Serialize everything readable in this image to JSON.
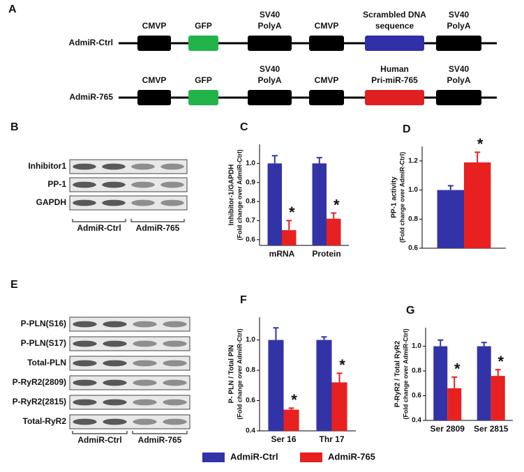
{
  "construct_diagram": {
    "panel": "A",
    "rows": [
      {
        "label": "AdmiR-Ctrl",
        "elements": [
          {
            "label": [
              "CMVP"
            ],
            "color": "#000000"
          },
          {
            "label": [
              "GFP"
            ],
            "color": "#22b34a"
          },
          {
            "label": [
              "SV40",
              "PolyA"
            ],
            "color": "#000000"
          },
          {
            "label": [
              "CMVP"
            ],
            "color": "#000000"
          },
          {
            "label": [
              "Scrambled DNA",
              "sequence"
            ],
            "color": "#3030a8"
          },
          {
            "label": [
              "SV40",
              "PolyA"
            ],
            "color": "#000000"
          }
        ]
      },
      {
        "label": "AdmiR-765",
        "elements": [
          {
            "label": [
              "CMVP"
            ],
            "color": "#000000"
          },
          {
            "label": [
              "GFP"
            ],
            "color": "#22b34a"
          },
          {
            "label": [
              "SV40",
              "PolyA"
            ],
            "color": "#000000"
          },
          {
            "label": [
              "CMVP"
            ],
            "color": "#000000"
          },
          {
            "label": [
              "Human",
              "Pri-miR-765"
            ],
            "color": "#e02020"
          },
          {
            "label": [
              "SV40",
              "PolyA"
            ],
            "color": "#000000"
          }
        ]
      }
    ]
  },
  "blot_b": {
    "panel": "B",
    "rows": [
      "Inhibitor1",
      "PP-1",
      "GAPDH"
    ],
    "groups": [
      "AdmiR-Ctrl",
      "AdmiR-765"
    ]
  },
  "blot_e": {
    "panel": "E",
    "rows": [
      "P-PLN(S16)",
      "P-PLN(S17)",
      "Total-PLN",
      "P-RyR2(2809)",
      "P-RyR2(2815)",
      "Total-RyR2"
    ],
    "groups": [
      "AdmiR-Ctrl",
      "AdmiR-765"
    ]
  },
  "chart_data": [
    {
      "type": "bar",
      "panel": "C",
      "ylabel": [
        "Inhibitor-1/GAPDH",
        "(Fold change over AdmiR-Ctrl)"
      ],
      "categories": [
        "mRNA",
        "Protein"
      ],
      "series": [
        {
          "name": "AdmiR-Ctrl",
          "color": "#3333a8",
          "values": [
            1.0,
            1.0
          ],
          "errors": [
            0.04,
            0.03
          ]
        },
        {
          "name": "AdmiR-765",
          "color": "#e82020",
          "values": [
            0.65,
            0.71
          ],
          "errors": [
            0.05,
            0.03
          ],
          "marks": [
            "*",
            "*"
          ]
        }
      ],
      "ylim": [
        0.57,
        1.1
      ],
      "yticks": [
        {
          "value": 0.6,
          "label": "0.6"
        },
        {
          "value": 0.7,
          "label": "0.7"
        },
        {
          "value": 0.8,
          "label": "0.8"
        },
        {
          "value": 0.9,
          "label": "0.9"
        },
        {
          "value": 1.0,
          "label": "1.0"
        }
      ]
    },
    {
      "type": "bar",
      "panel": "D",
      "ylabel": [
        "PP-1 activity",
        "(Fold change over AdmiR-Ctrl)"
      ],
      "categories": [
        null
      ],
      "series": [
        {
          "name": "AdmiR-Ctrl",
          "color": "#3333a8",
          "values": [
            1.0
          ],
          "errors": [
            0.03
          ]
        },
        {
          "name": "AdmiR-765",
          "color": "#e82020",
          "values": [
            1.19
          ],
          "errors": [
            0.07
          ],
          "marks": [
            "*"
          ]
        }
      ],
      "ylim": [
        0.6,
        1.3
      ],
      "yticks": [
        {
          "value": 0.6,
          "label": "0.6"
        },
        {
          "value": 0.8,
          "label": "0.8"
        },
        {
          "value": 1.0,
          "label": "1.0"
        },
        {
          "value": 1.2,
          "label": "1.2"
        }
      ]
    },
    {
      "type": "bar",
      "panel": "F",
      "ylabel": [
        "P- PLN / Total PlN",
        "(Fold change over AdmiR-Ctrl)"
      ],
      "categories": [
        "Ser 16",
        "Thr 17"
      ],
      "series": [
        {
          "name": "AdmiR-Ctrl",
          "color": "#3333a8",
          "values": [
            1.0,
            1.0
          ],
          "errors": [
            0.08,
            0.02
          ]
        },
        {
          "name": "AdmiR-765",
          "color": "#e82020",
          "values": [
            0.54,
            0.72
          ],
          "errors": [
            0.01,
            0.06
          ],
          "marks": [
            "*",
            "*"
          ]
        }
      ],
      "ylim": [
        0.4,
        1.15
      ],
      "yticks": [
        {
          "value": 0.4,
          "label": "0.4"
        },
        {
          "value": 0.6,
          "label": "0.6"
        },
        {
          "value": 0.8,
          "label": "0.8"
        },
        {
          "value": 1.0,
          "label": "1.0"
        }
      ]
    },
    {
      "type": "bar",
      "panel": "G",
      "ylabel": [
        "P-RyR2 / Total RyR2",
        "(Fold change over AdmiR-Ctrl)"
      ],
      "categories": [
        "Ser 2809",
        "Ser 2815"
      ],
      "series": [
        {
          "name": "AdmiR-Ctrl",
          "color": "#3333a8",
          "values": [
            1.0,
            1.0
          ],
          "errors": [
            0.05,
            0.03
          ]
        },
        {
          "name": "AdmiR-765",
          "color": "#e82020",
          "values": [
            0.66,
            0.76
          ],
          "errors": [
            0.09,
            0.05
          ],
          "marks": [
            "*",
            "*"
          ]
        }
      ],
      "ylim": [
        0.4,
        1.15
      ],
      "yticks": [
        {
          "value": 0.4,
          "label": "0.4"
        },
        {
          "value": 0.6,
          "label": "0.6"
        },
        {
          "value": 0.8,
          "label": "0.8"
        },
        {
          "value": 1.0,
          "label": "1.0"
        }
      ]
    }
  ]
}
